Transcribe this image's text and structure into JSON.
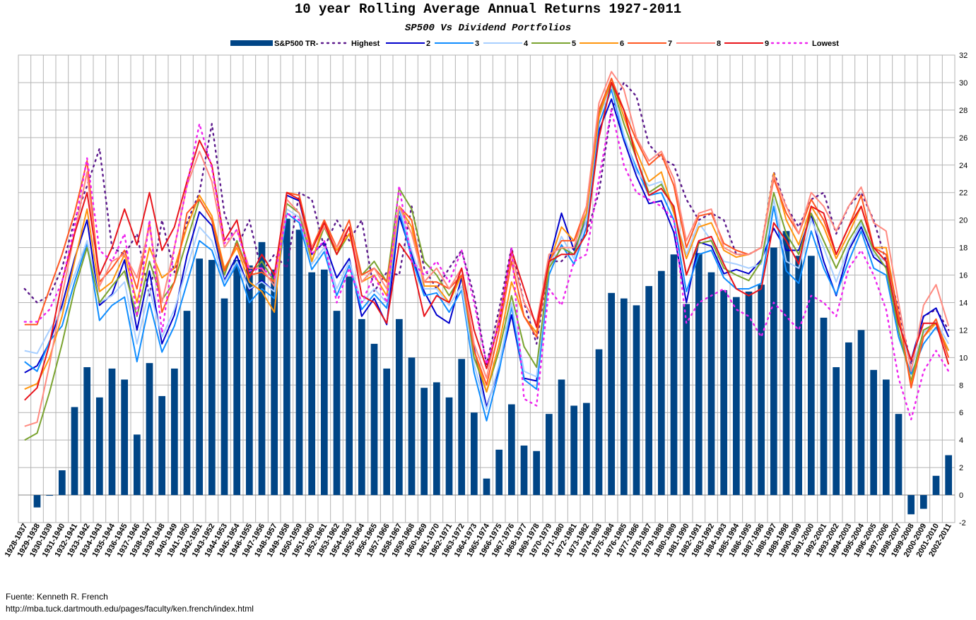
{
  "chart_data": {
    "type": "bar",
    "title": "10 year Rolling Average Annual Returns 1927-2011",
    "subtitle": "SP500 Vs Dividend Portfolios",
    "ylim": [
      -2,
      32
    ],
    "yticks": [
      -2,
      0,
      2,
      4,
      6,
      8,
      10,
      12,
      14,
      16,
      18,
      20,
      22,
      24,
      26,
      28,
      30,
      32
    ],
    "grid": true,
    "legend_position": "top",
    "categories": [
      "1928-1937",
      "1929-1938",
      "1930-1939",
      "1931-1940",
      "1932-1941",
      "1933-1942",
      "1934-1943",
      "1935-1944",
      "1936-1945",
      "1937-1946",
      "1938-1947",
      "1939-1948",
      "1940-1949",
      "1941-1950",
      "1942-1951",
      "1943-1952",
      "1944-1953",
      "1945-1954",
      "1946-1955",
      "1947-1956",
      "1948-1957",
      "1949-1958",
      "1950-1959",
      "1951-1960",
      "1952-1961",
      "1953-1962",
      "1954-1963",
      "1955-1964",
      "1956-1965",
      "1957-1966",
      "1958-1967",
      "1959-1968",
      "1960-1969",
      "1961-1970",
      "1962-1971",
      "1963-1972",
      "1964-1973",
      "1965-1974",
      "1966-1975",
      "1967-1976",
      "1968-1977",
      "1969-1978",
      "1970-1979",
      "1971-1980",
      "1972-1981",
      "1973-1982",
      "1974-1983",
      "1975-1984",
      "1976-1985",
      "1977-1986",
      "1978-1987",
      "1979-1988",
      "1980-1989",
      "1981-1990",
      "1982-1991",
      "1983-1992",
      "1984-1993",
      "1985-1994",
      "1986-1995",
      "1987-1996",
      "1988-1997",
      "1989-1998",
      "1990-1999",
      "1991-2000",
      "1992-2001",
      "1993-2002",
      "1994-2003",
      "1995-2004",
      "1996-2005",
      "1997-2006",
      "1998-2007",
      "1999-2008",
      "2000-2009",
      "2001-2010",
      "2002-2011"
    ],
    "series": [
      {
        "name": "S&P500 TR-",
        "kind": "bar",
        "color": "#004586",
        "values": [
          0,
          -0.9,
          -0.05,
          1.8,
          6.4,
          9.3,
          7.1,
          9.2,
          8.4,
          4.4,
          9.6,
          7.2,
          9.2,
          13.4,
          17.2,
          17.1,
          14.3,
          17.1,
          16.7,
          18.4,
          16.4,
          20.1,
          19.3,
          16.2,
          16.4,
          13.4,
          15.9,
          12.8,
          11.0,
          9.2,
          12.8,
          10.0,
          7.8,
          8.2,
          7.1,
          9.9,
          6.0,
          1.2,
          3.3,
          6.6,
          3.6,
          3.2,
          5.9,
          8.4,
          6.5,
          6.7,
          10.6,
          14.7,
          14.3,
          13.8,
          15.2,
          16.3,
          17.5,
          13.9,
          17.6,
          16.2,
          14.9,
          14.4,
          14.8,
          15.3,
          18.0,
          19.2,
          17.4,
          17.4,
          12.9,
          9.3,
          11.1,
          12.0,
          9.1,
          8.4,
          5.9,
          -1.4,
          -1.0,
          1.4,
          2.9
        ]
      },
      {
        "name": "Highest",
        "kind": "line",
        "dash": "2,6",
        "color": "#5c1a8c",
        "values": [
          15.0,
          14.0,
          14.5,
          16.5,
          20.0,
          22.5,
          25.2,
          18.0,
          17.5,
          19.0,
          14.5,
          20.0,
          16.2,
          19.8,
          22.0,
          27.0,
          20.5,
          18.0,
          20.0,
          16.2,
          17.5,
          16.5,
          22.0,
          21.5,
          18.0,
          20.0,
          18.5,
          20.0,
          14.8,
          16.2,
          16.0,
          21.0,
          16.5,
          15.0,
          16.5,
          17.8,
          14.5,
          9.5,
          13.5,
          18.0,
          14.0,
          11.0,
          17.0,
          17.0,
          18.0,
          19.0,
          22.0,
          28.0,
          30.0,
          29.0,
          25.5,
          24.5,
          24.0,
          21.5,
          20.0,
          20.5,
          20.0,
          17.5,
          17.5,
          18.0,
          23.5,
          21.0,
          19.5,
          21.5,
          22.0,
          19.0,
          21.0,
          22.0,
          20.0,
          17.0,
          13.5,
          9.5,
          13.0,
          13.5,
          12.0
        ]
      },
      {
        "name": "2",
        "kind": "line",
        "color": "#0000cc",
        "values": [
          8.9,
          9.4,
          11.1,
          13.8,
          17.2,
          20.0,
          13.8,
          14.6,
          17.1,
          12.0,
          16.3,
          11.0,
          13.1,
          17.4,
          20.6,
          19.6,
          15.6,
          17.4,
          14.9,
          15.6,
          14.8,
          21.8,
          21.4,
          17.5,
          18.4,
          15.8,
          17.2,
          13.0,
          14.3,
          12.4,
          20.3,
          17.5,
          14.8,
          13.1,
          12.5,
          15.8,
          10.7,
          6.4,
          9.2,
          13.1,
          8.5,
          8.3,
          17.0,
          20.5,
          17.8,
          20.0,
          26.5,
          28.8,
          25.8,
          23.2,
          21.2,
          21.4,
          19.1,
          14.0,
          18.4,
          18.1,
          16.1,
          16.4,
          16.1,
          17.1,
          19.4,
          17.8,
          17.8,
          20.4,
          17.0,
          14.5,
          17.8,
          19.5,
          17.3,
          16.6,
          12.5,
          9.8,
          13.0,
          13.6,
          11.5
        ]
      },
      {
        "name": "3",
        "kind": "line",
        "color": "#0f8dff",
        "values": [
          9.7,
          9.0,
          11.2,
          12.3,
          15.5,
          18.3,
          12.7,
          13.8,
          14.4,
          9.7,
          14.0,
          10.4,
          12.3,
          15.4,
          18.5,
          17.8,
          15.2,
          16.8,
          14.0,
          15.0,
          14.3,
          20.5,
          19.8,
          16.4,
          17.7,
          14.5,
          16.7,
          13.5,
          14.6,
          13.6,
          20.8,
          17.2,
          14.5,
          14.7,
          13.3,
          14.9,
          8.9,
          5.4,
          9.0,
          13.7,
          8.4,
          7.7,
          16.0,
          18.2,
          16.8,
          19.5,
          27.0,
          29.5,
          26.0,
          23.8,
          21.8,
          22.0,
          20.0,
          14.8,
          17.5,
          17.8,
          15.8,
          15.0,
          15.0,
          15.4,
          21.0,
          16.3,
          15.4,
          19.2,
          16.5,
          14.6,
          17.0,
          19.2,
          16.5,
          16.0,
          11.5,
          8.8,
          11.0,
          12.2,
          10.5
        ]
      },
      {
        "name": "4",
        "kind": "line",
        "color": "#a8cfff",
        "values": [
          10.5,
          10.3,
          12.0,
          13.5,
          16.0,
          18.5,
          14.0,
          14.5,
          15.5,
          11.0,
          15.0,
          11.5,
          13.5,
          16.5,
          19.5,
          18.5,
          15.5,
          17.0,
          15.0,
          15.5,
          14.8,
          20.8,
          20.2,
          16.8,
          18.0,
          15.0,
          17.0,
          14.0,
          15.0,
          14.0,
          21.0,
          17.8,
          15.0,
          15.0,
          13.8,
          15.2,
          9.5,
          6.2,
          9.5,
          14.0,
          9.0,
          8.6,
          16.5,
          18.8,
          17.2,
          20.0,
          27.5,
          29.8,
          26.2,
          23.5,
          22.5,
          22.8,
          20.5,
          17.5,
          19.8,
          18.5,
          17.0,
          16.8,
          16.5,
          16.8,
          21.5,
          17.0,
          16.5,
          20.0,
          18.0,
          15.5,
          18.0,
          19.8,
          17.5,
          17.0,
          12.8,
          9.2,
          11.8,
          12.6,
          11.0
        ]
      },
      {
        "name": "5",
        "kind": "line",
        "color": "#7aa32f",
        "values": [
          4.0,
          4.5,
          7.5,
          11.0,
          15.0,
          18.0,
          14.0,
          15.2,
          16.3,
          13.0,
          17.0,
          14.2,
          15.5,
          18.5,
          21.5,
          20.0,
          16.0,
          18.5,
          16.0,
          17.0,
          15.5,
          21.2,
          20.5,
          17.0,
          19.5,
          17.5,
          19.0,
          16.0,
          17.0,
          15.5,
          22.3,
          20.8,
          17.0,
          16.0,
          14.5,
          16.0,
          10.0,
          7.5,
          10.5,
          14.5,
          10.8,
          9.3,
          16.5,
          18.0,
          17.5,
          20.5,
          27.8,
          30.0,
          27.0,
          24.5,
          22.0,
          22.6,
          20.8,
          16.0,
          18.3,
          18.5,
          16.5,
          16.0,
          15.6,
          17.0,
          22.0,
          19.0,
          17.5,
          20.5,
          18.5,
          16.5,
          18.5,
          20.0,
          17.8,
          16.5,
          12.0,
          8.3,
          12.0,
          12.5,
          10.5
        ]
      },
      {
        "name": "6",
        "kind": "line",
        "color": "#ff950e",
        "values": [
          7.7,
          8.1,
          10.0,
          13.0,
          17.0,
          20.8,
          14.8,
          15.5,
          17.5,
          14.0,
          18.0,
          15.8,
          16.5,
          19.5,
          21.8,
          20.3,
          16.5,
          18.0,
          15.5,
          14.8,
          13.3,
          22.0,
          21.8,
          17.0,
          19.8,
          17.8,
          19.0,
          15.5,
          16.0,
          14.5,
          21.0,
          19.5,
          15.2,
          15.2,
          14.0,
          16.0,
          10.5,
          7.5,
          11.0,
          15.5,
          13.0,
          11.8,
          16.8,
          19.5,
          18.5,
          20.5,
          27.5,
          30.3,
          27.5,
          25.0,
          22.8,
          23.5,
          20.5,
          17.2,
          19.5,
          19.8,
          17.8,
          17.3,
          17.5,
          18.0,
          23.4,
          20.0,
          18.2,
          21.0,
          19.5,
          17.2,
          19.0,
          21.0,
          18.0,
          18.0,
          13.0,
          8.0,
          11.5,
          12.5,
          10.5
        ]
      },
      {
        "name": "7",
        "kind": "line",
        "color": "#ff5722",
        "values": [
          12.4,
          12.4,
          15.0,
          17.5,
          20.5,
          24.3,
          15.5,
          16.5,
          17.8,
          15.0,
          19.8,
          13.3,
          15.5,
          20.5,
          21.5,
          20.0,
          16.3,
          18.3,
          16.0,
          16.2,
          15.5,
          22.0,
          21.8,
          18.0,
          20.0,
          18.0,
          20.0,
          16.0,
          16.5,
          15.5,
          21.0,
          20.0,
          15.5,
          15.5,
          15.0,
          16.0,
          10.5,
          8.0,
          12.0,
          17.0,
          13.0,
          11.5,
          17.0,
          18.5,
          18.5,
          21.0,
          28.0,
          30.3,
          28.0,
          25.8,
          24.0,
          24.8,
          22.5,
          18.0,
          20.3,
          20.5,
          18.3,
          17.8,
          17.5,
          18.0,
          23.0,
          20.5,
          19.0,
          21.5,
          20.0,
          17.5,
          19.5,
          21.8,
          18.0,
          17.5,
          13.2,
          7.8,
          11.5,
          12.8,
          10.0
        ]
      },
      {
        "name": "8",
        "kind": "line",
        "color": "#ff8a80",
        "values": [
          5.0,
          5.3,
          9.5,
          14.5,
          19.0,
          23.5,
          15.2,
          17.0,
          17.5,
          15.8,
          19.5,
          14.0,
          18.0,
          22.5,
          25.0,
          22.8,
          18.0,
          19.3,
          16.5,
          16.5,
          15.2,
          21.5,
          20.5,
          18.0,
          19.5,
          18.0,
          19.5,
          15.5,
          16.5,
          15.0,
          21.0,
          19.0,
          15.5,
          16.5,
          15.0,
          16.5,
          11.0,
          8.5,
          13.0,
          17.5,
          14.0,
          12.5,
          17.5,
          18.0,
          18.0,
          21.0,
          28.5,
          30.8,
          29.5,
          26.0,
          24.3,
          25.0,
          23.0,
          18.5,
          20.5,
          20.8,
          18.0,
          17.5,
          17.5,
          18.0,
          23.2,
          21.0,
          19.0,
          22.0,
          21.0,
          19.2,
          21.0,
          22.4,
          19.8,
          19.2,
          14.0,
          9.0,
          13.8,
          15.3,
          12.3
        ]
      },
      {
        "name": "9",
        "kind": "line",
        "color": "#e8141b",
        "values": [
          6.9,
          7.8,
          11.0,
          15.5,
          19.0,
          22.0,
          16.0,
          18.0,
          20.8,
          18.2,
          22.0,
          17.8,
          19.5,
          22.8,
          25.8,
          24.0,
          18.5,
          20.0,
          15.8,
          17.5,
          16.0,
          22.0,
          21.5,
          17.8,
          19.8,
          17.5,
          19.5,
          14.5,
          14.0,
          12.5,
          18.3,
          17.0,
          13.0,
          14.5,
          14.0,
          16.5,
          12.0,
          9.2,
          12.5,
          17.8,
          15.0,
          12.2,
          17.0,
          17.5,
          17.5,
          19.0,
          26.0,
          30.0,
          28.0,
          24.5,
          21.8,
          22.3,
          21.0,
          16.0,
          18.5,
          18.8,
          16.8,
          15.0,
          14.5,
          15.0,
          19.8,
          18.5,
          16.8,
          21.0,
          20.5,
          17.5,
          19.5,
          21.0,
          18.0,
          17.0,
          12.5,
          9.8,
          12.5,
          12.5,
          9.5
        ]
      },
      {
        "name": "Lowest",
        "kind": "line",
        "dash": "2,6",
        "color": "#ee22ee",
        "values": [
          12.6,
          12.6,
          13.5,
          15.5,
          19.5,
          24.5,
          17.8,
          17.0,
          19.0,
          13.0,
          20.0,
          11.8,
          18.0,
          22.5,
          27.0,
          23.8,
          18.3,
          19.3,
          16.3,
          16.5,
          15.8,
          20.5,
          20.0,
          17.5,
          18.5,
          14.0,
          16.5,
          14.0,
          16.0,
          14.0,
          22.5,
          17.0,
          16.0,
          17.0,
          15.5,
          17.8,
          14.0,
          9.5,
          12.5,
          18.0,
          7.0,
          6.5,
          15.0,
          13.8,
          17.0,
          17.5,
          23.0,
          28.0,
          24.0,
          22.0,
          21.5,
          21.0,
          20.0,
          12.5,
          14.0,
          14.5,
          15.0,
          13.5,
          13.0,
          11.5,
          14.0,
          13.0,
          12.0,
          14.5,
          14.0,
          13.0,
          16.5,
          17.8,
          16.0,
          13.5,
          8.5,
          5.5,
          9.0,
          10.5,
          9.0
        ]
      }
    ]
  },
  "source": {
    "line1": "Fuente: Kenneth R. French",
    "line2": "http://mba.tuck.dartmouth.edu/pages/faculty/ken.french/index.html"
  }
}
